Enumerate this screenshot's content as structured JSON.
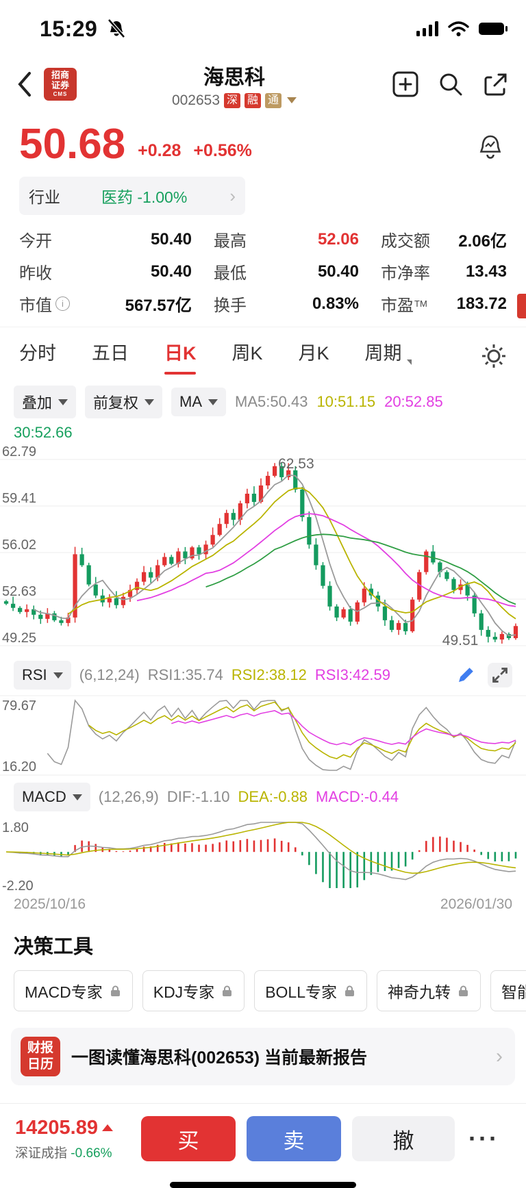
{
  "colors": {
    "up": "#e23333",
    "down": "#149b5f",
    "ma5": "#9a9a9a",
    "ma10": "#b9b400",
    "ma20": "#e23fe2",
    "ma30": "#2f9e44",
    "rsi1": "#9a9a9a",
    "rsi2": "#b9b400",
    "rsi3": "#e23fe2",
    "dif": "#9a9a9a",
    "dea": "#b9b400",
    "accent_red": "#e23333",
    "accent_green": "#17a05e",
    "sell_blue": "#5a7fdb",
    "grid": "#ececec",
    "axis_text": "#666666"
  },
  "status_bar": {
    "time": "15:29"
  },
  "header": {
    "broker_logo_line1": "招商",
    "broker_logo_line2": "证券",
    "broker_logo_sub": "CMS",
    "title": "海思科",
    "code": "002653",
    "tags": [
      "深",
      "融",
      "通"
    ]
  },
  "price": {
    "last": "50.68",
    "change": "+0.28",
    "change_pct": "+0.56%"
  },
  "industry": {
    "label": "行业",
    "name": "医药 -1.00%"
  },
  "stats": [
    {
      "label": "今开",
      "value": "50.40"
    },
    {
      "label": "最高",
      "value": "52.06"
    },
    {
      "label": "成交额",
      "value": "2.06亿"
    },
    {
      "label": "昨收",
      "value": "50.40"
    },
    {
      "label": "最低",
      "value": "50.40"
    },
    {
      "label": "市净率",
      "value": "13.43"
    },
    {
      "label": "市值",
      "value": "567.57亿"
    },
    {
      "label": "换手",
      "value": "0.83%"
    },
    {
      "label": "市盈",
      "sup": "TM",
      "value": "183.72"
    }
  ],
  "tabs": [
    {
      "label": "分时"
    },
    {
      "label": "五日"
    },
    {
      "label": "日K"
    },
    {
      "label": "周K"
    },
    {
      "label": "月K"
    },
    {
      "label": "周期"
    }
  ],
  "chart_controls": {
    "overlay": "叠加",
    "adjust": "前复权",
    "indicator": "MA",
    "ma5": "MA5:50.43",
    "ma10": "10:51.15",
    "ma20": "20:52.85",
    "ma30": "30:52.66"
  },
  "chart_data": {
    "main": {
      "type": "candlestick",
      "y_axis_labels": [
        "62.79",
        "59.41",
        "56.02",
        "52.63",
        "49.25"
      ],
      "y_range": [
        49.25,
        62.79
      ],
      "peak_label": "62.53",
      "trough_label": "49.51",
      "ma_periods": [
        5,
        10,
        20,
        30
      ],
      "closes": [
        52.3,
        52.0,
        51.7,
        51.9,
        51.5,
        51.2,
        51.6,
        51.1,
        50.9,
        51.3,
        55.9,
        55.1,
        53.7,
        52.9,
        52.4,
        52.7,
        52.2,
        52.8,
        53.3,
        53.9,
        54.6,
        54.2,
        55.1,
        55.7,
        55.2,
        56.1,
        55.6,
        56.4,
        55.9,
        56.6,
        57.3,
        58.1,
        58.9,
        58.4,
        59.6,
        60.3,
        59.7,
        60.9,
        61.6,
        62.3,
        61.5,
        62.0,
        60.6,
        58.6,
        56.6,
        55.1,
        53.6,
        52.1,
        51.3,
        51.9,
        51.0,
        52.4,
        53.4,
        52.9,
        52.1,
        51.1,
        50.4,
        50.9,
        50.3,
        52.6,
        54.6,
        56.1,
        55.3,
        54.6,
        54.1,
        53.3,
        53.7,
        52.9,
        51.6,
        50.4,
        49.9,
        49.7,
        50.1,
        49.8,
        50.68
      ]
    },
    "rsi": {
      "type": "line",
      "periods": [
        6,
        12,
        24
      ],
      "y_labels": [
        "79.67",
        "16.20"
      ],
      "y_range": [
        16.2,
        79.67
      ]
    },
    "macd": {
      "type": "macd",
      "params": [
        12,
        26,
        9
      ],
      "y_labels": [
        "1.80",
        "-2.20"
      ],
      "y_range": [
        -2.2,
        1.8
      ]
    },
    "x_start": "2025/10/16",
    "x_end": "2026/01/30"
  },
  "rsi_header": {
    "name": "RSI",
    "params": "(6,12,24)",
    "v1": "RSI1:35.74",
    "v2": "RSI2:38.12",
    "v3": "RSI3:42.59"
  },
  "macd_header": {
    "name": "MACD",
    "params": "(12,26,9)",
    "v1": "DIF:-1.10",
    "v2": "DEA:-0.88",
    "v3": "MACD:-0.44"
  },
  "dates": {
    "start": "2025/10/16",
    "end": "2026/01/30"
  },
  "tools": {
    "title": "决策工具",
    "items": [
      {
        "label": "MACD专家"
      },
      {
        "label": "KDJ专家"
      },
      {
        "label": "BOLL专家"
      },
      {
        "label": "神奇九转"
      },
      {
        "label": "智能画线"
      }
    ]
  },
  "report_banner": {
    "badge_top": "财报",
    "badge_bottom": "日历",
    "text": "一图读懂海思科(002653) 当前最新报告"
  },
  "bottom_bar": {
    "index_value": "14205.89",
    "index_name": "深证成指",
    "index_change": "-0.66%",
    "buy": "买",
    "sell": "卖",
    "cancel": "撤",
    "more": "···"
  }
}
